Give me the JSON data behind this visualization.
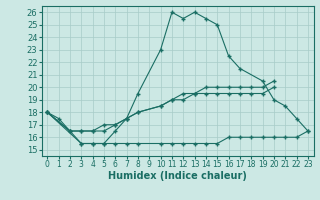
{
  "xlabel": "Humidex (Indice chaleur)",
  "bg_color": "#cce8e4",
  "line_color": "#1a6e64",
  "grid_color": "#a8ccc8",
  "xlim": [
    -0.5,
    23.5
  ],
  "ylim": [
    14.5,
    26.5
  ],
  "xticks": [
    0,
    1,
    2,
    3,
    4,
    5,
    6,
    7,
    8,
    9,
    10,
    11,
    12,
    13,
    14,
    15,
    16,
    17,
    18,
    19,
    20,
    21,
    22,
    23
  ],
  "yticks": [
    15,
    16,
    17,
    18,
    19,
    20,
    21,
    22,
    23,
    24,
    25,
    26
  ],
  "series": [
    {
      "x": [
        0,
        1,
        2,
        3,
        4,
        5,
        6,
        7,
        8,
        10,
        11,
        12,
        13,
        14,
        15,
        16,
        17,
        19,
        20,
        21,
        22,
        23
      ],
      "y": [
        18.0,
        17.5,
        16.5,
        15.5,
        15.5,
        15.5,
        16.5,
        17.5,
        19.5,
        23.0,
        26.0,
        25.5,
        26.0,
        25.5,
        25.0,
        22.5,
        21.5,
        20.5,
        19.0,
        18.5,
        17.5,
        16.5
      ]
    },
    {
      "x": [
        0,
        2,
        3,
        4,
        5,
        6,
        7,
        8,
        10,
        11,
        12,
        13,
        14,
        15,
        16,
        17,
        18,
        19,
        20
      ],
      "y": [
        18.0,
        16.5,
        16.5,
        16.5,
        17.0,
        17.0,
        17.5,
        18.0,
        18.5,
        19.0,
        19.5,
        19.5,
        20.0,
        20.0,
        20.0,
        20.0,
        20.0,
        20.0,
        20.5
      ]
    },
    {
      "x": [
        0,
        2,
        3,
        4,
        5,
        6,
        7,
        8,
        10,
        11,
        12,
        13,
        14,
        15,
        16,
        17,
        18,
        19,
        20
      ],
      "y": [
        18.0,
        16.5,
        16.5,
        16.5,
        16.5,
        17.0,
        17.5,
        18.0,
        18.5,
        19.0,
        19.0,
        19.5,
        19.5,
        19.5,
        19.5,
        19.5,
        19.5,
        19.5,
        20.0
      ]
    },
    {
      "x": [
        0,
        3,
        4,
        5,
        6,
        7,
        8,
        10,
        11,
        12,
        13,
        14,
        15,
        16,
        17,
        18,
        19,
        20,
        21,
        22,
        23
      ],
      "y": [
        18.0,
        15.5,
        15.5,
        15.5,
        15.5,
        15.5,
        15.5,
        15.5,
        15.5,
        15.5,
        15.5,
        15.5,
        15.5,
        16.0,
        16.0,
        16.0,
        16.0,
        16.0,
        16.0,
        16.0,
        16.5
      ]
    }
  ]
}
